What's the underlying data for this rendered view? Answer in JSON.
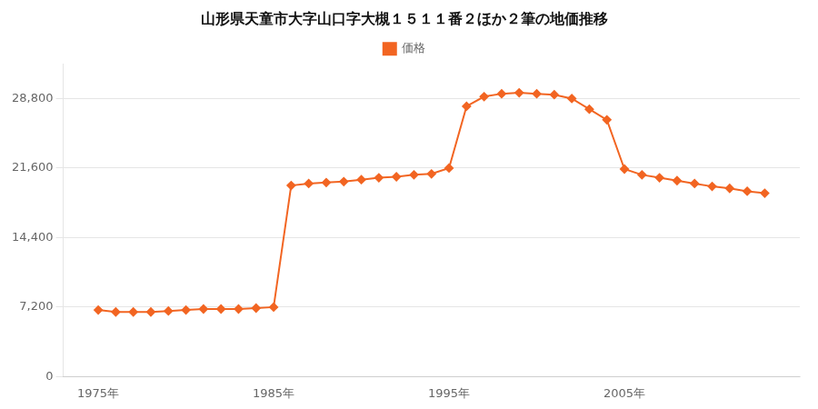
{
  "chart_data": {
    "type": "line",
    "title": "山形県天童市大字山口字大槻１５１１番２ほか２筆の地価推移",
    "x": [
      1975,
      1976,
      1977,
      1978,
      1979,
      1980,
      1981,
      1982,
      1983,
      1984,
      1985,
      1986,
      1987,
      1988,
      1989,
      1990,
      1991,
      1992,
      1993,
      1994,
      1995,
      1996,
      1997,
      1998,
      1999,
      2000,
      2001,
      2002,
      2003,
      2004,
      2005,
      2006,
      2007,
      2008,
      2009,
      2010,
      2011,
      2012,
      2013
    ],
    "series": [
      {
        "name": "価格",
        "color": "#f26522",
        "marker": "diamond",
        "values": [
          6900,
          6700,
          6700,
          6700,
          6800,
          6900,
          7000,
          7000,
          7000,
          7100,
          7200,
          19800,
          20000,
          20100,
          20200,
          20400,
          20600,
          20700,
          20900,
          21000,
          21600,
          28000,
          29000,
          29300,
          29400,
          29300,
          29200,
          28800,
          27700,
          26600,
          21500,
          20900,
          20600,
          20300,
          20000,
          19700,
          19500,
          19200,
          19000
        ]
      }
    ],
    "xlim": [
      1973,
      2015
    ],
    "xticks": [
      {
        "value": 1975,
        "label": "1975年"
      },
      {
        "value": 1985,
        "label": "1985年"
      },
      {
        "value": 1995,
        "label": "1995年"
      },
      {
        "value": 2005,
        "label": "2005年"
      }
    ],
    "ylim": [
      0,
      32400
    ],
    "yticks": [
      0,
      {
        "value": 7200,
        "label": "7,200"
      },
      {
        "value": 14400,
        "label": "14,400"
      },
      {
        "value": 21600,
        "label": "21,600"
      },
      {
        "value": 28800,
        "label": "28,800"
      }
    ],
    "grid": "y",
    "legend": "top"
  }
}
